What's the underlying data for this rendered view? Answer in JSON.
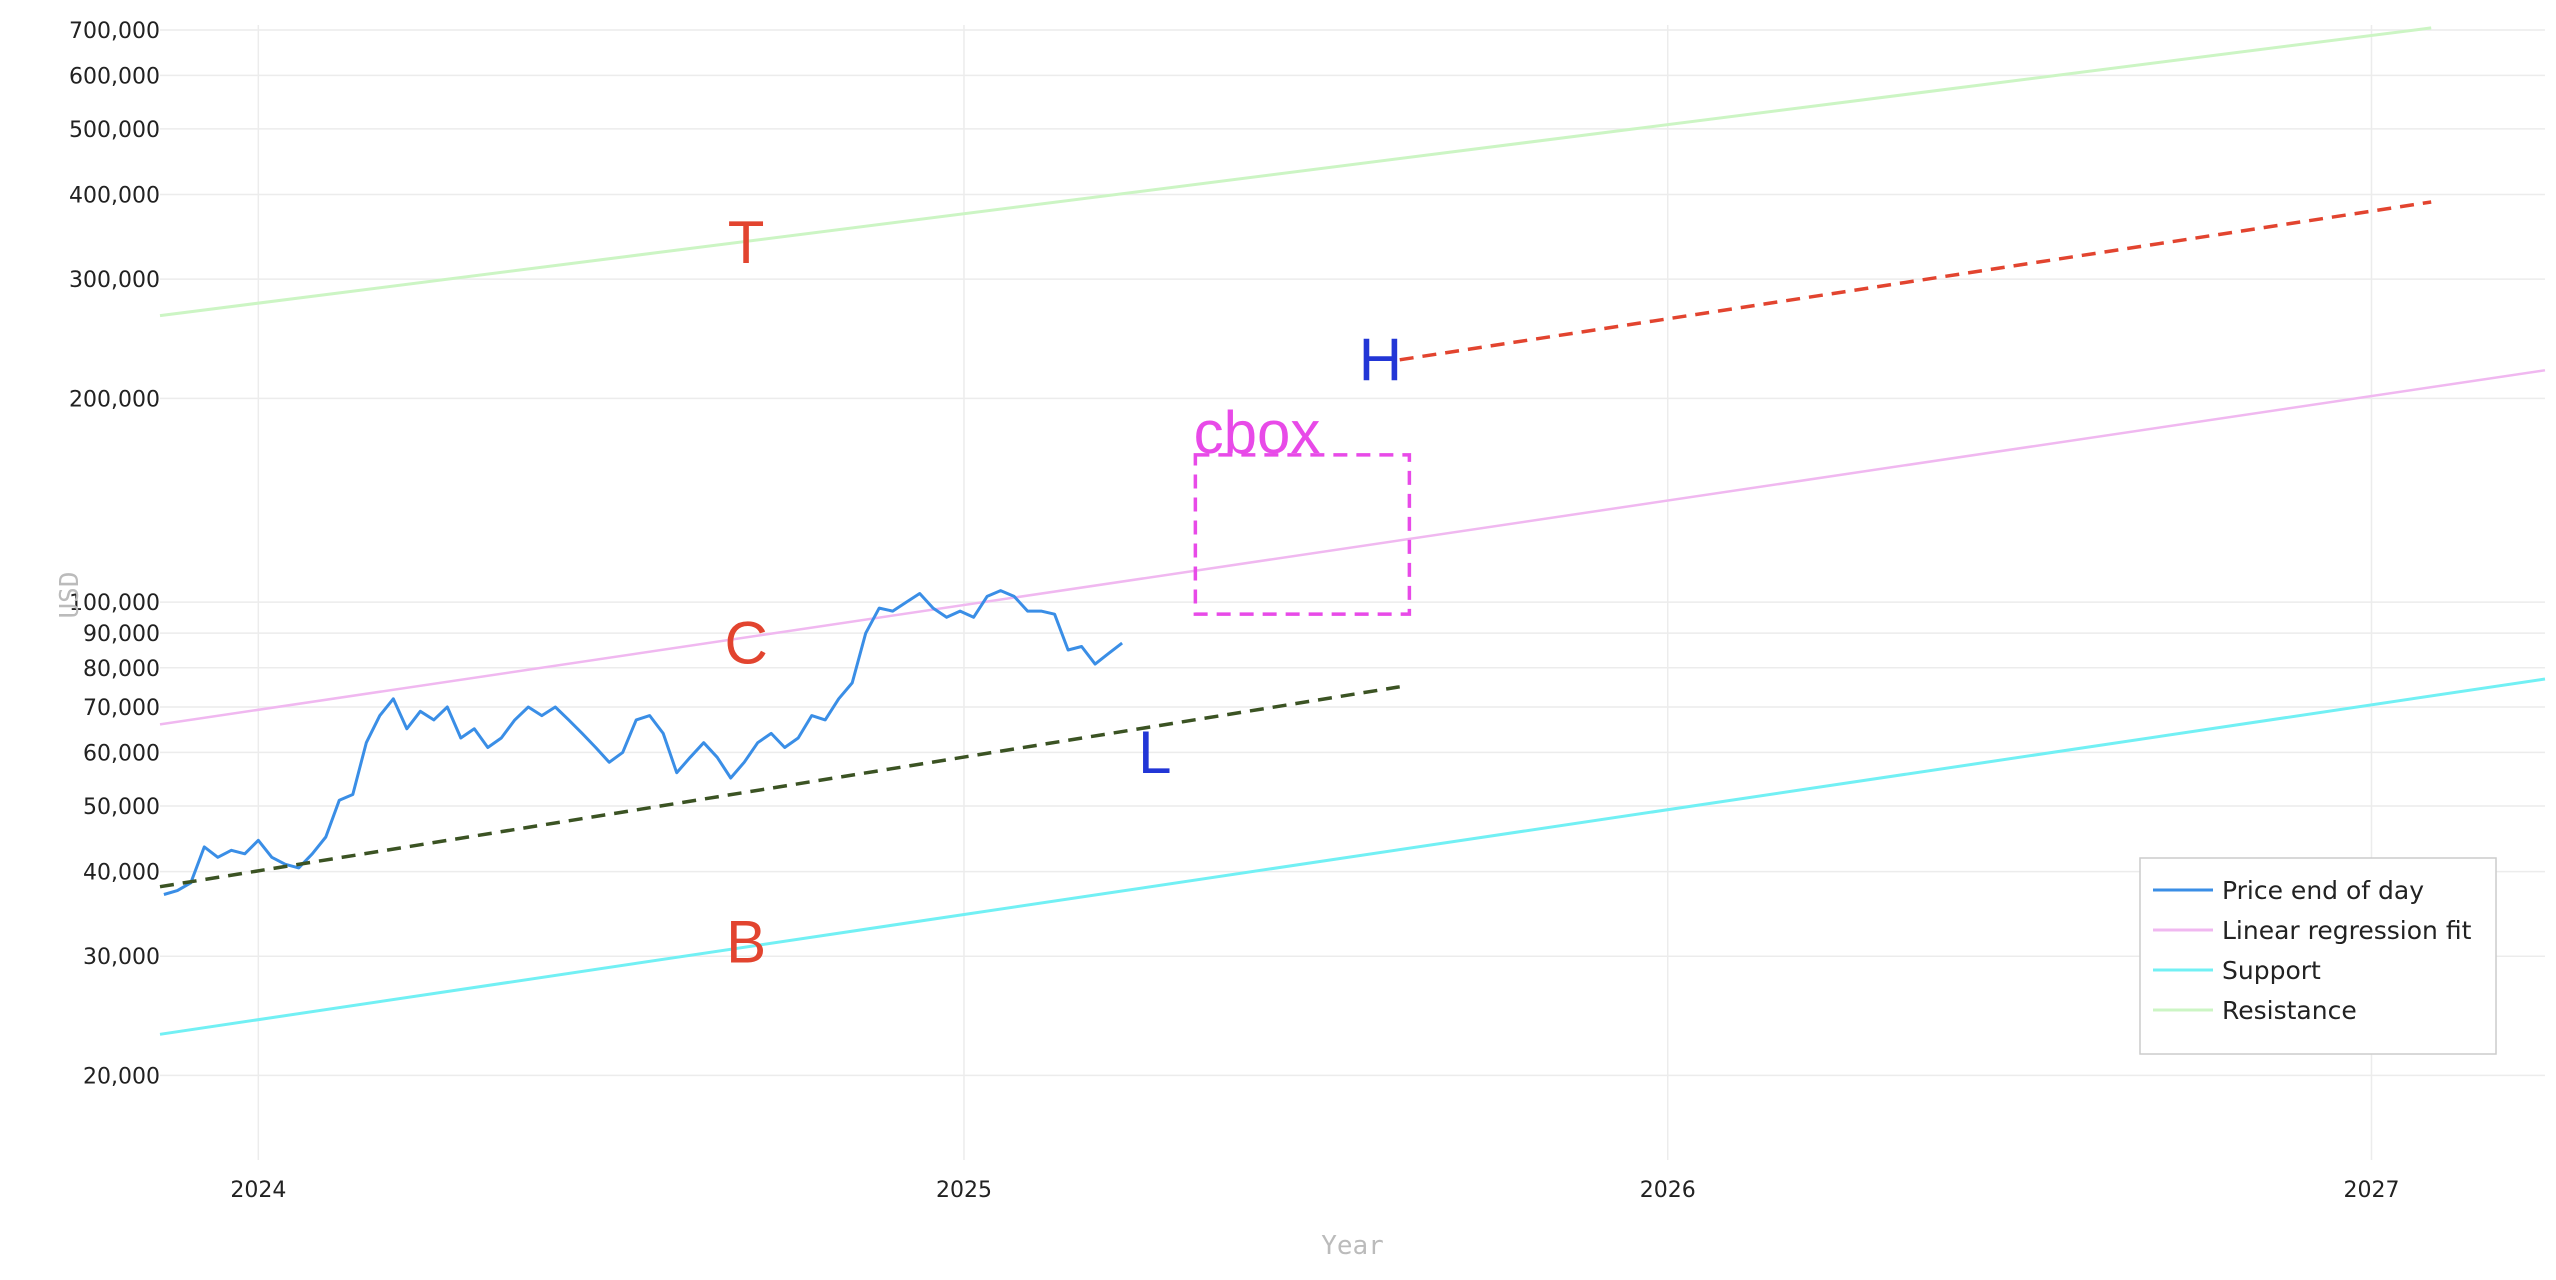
{
  "chart_data": {
    "type": "line",
    "title": "",
    "xlabel": "Year",
    "ylabel": "USD",
    "y_scale": "log",
    "ylim": [
      15000,
      700000
    ],
    "xlim": [
      "2023-11-11",
      "2027-04-01"
    ],
    "grid": true,
    "x_ticks": [
      {
        "value": "2024-01-01",
        "label": "2024"
      },
      {
        "value": "2025-01-01",
        "label": "2025"
      },
      {
        "value": "2026-01-01",
        "label": "2026"
      },
      {
        "value": "2027-01-01",
        "label": "2027"
      }
    ],
    "y_ticks": [
      {
        "value": 20000,
        "label": "20,000"
      },
      {
        "value": 30000,
        "label": "30,000"
      },
      {
        "value": 40000,
        "label": "40,000"
      },
      {
        "value": 50000,
        "label": "50,000"
      },
      {
        "value": 60000,
        "label": "60,000"
      },
      {
        "value": 70000,
        "label": "70,000"
      },
      {
        "value": 80000,
        "label": "80,000"
      },
      {
        "value": 90000,
        "label": "90,000"
      },
      {
        "value": 100000,
        "label": "100,000"
      },
      {
        "value": 200000,
        "label": "200,000"
      },
      {
        "value": 300000,
        "label": "300,000"
      },
      {
        "value": 400000,
        "label": "400,000"
      },
      {
        "value": 500000,
        "label": "500,000"
      },
      {
        "value": 600000,
        "label": "600,000"
      },
      {
        "value": 700000,
        "label": "700,000"
      }
    ],
    "legend": {
      "position": "bottom-right",
      "entries": [
        {
          "label": "Price end of day",
          "color": "#3a8ee6"
        },
        {
          "label": "Linear regression fit",
          "color": "#f0b8f0"
        },
        {
          "label": "Support",
          "color": "#72f0f4"
        },
        {
          "label": "Resistance",
          "color": "#ccf5c4"
        }
      ]
    },
    "series": [
      {
        "name": "Price end of day",
        "kind": "price",
        "color": "#3a8ee6",
        "x": [
          "2023-11-13",
          "2023-11-20",
          "2023-11-27",
          "2023-12-04",
          "2023-12-11",
          "2023-12-18",
          "2023-12-25",
          "2024-01-01",
          "2024-01-08",
          "2024-01-15",
          "2024-01-22",
          "2024-01-29",
          "2024-02-05",
          "2024-02-12",
          "2024-02-19",
          "2024-02-26",
          "2024-03-04",
          "2024-03-11",
          "2024-03-18",
          "2024-03-25",
          "2024-04-01",
          "2024-04-08",
          "2024-04-15",
          "2024-04-22",
          "2024-04-29",
          "2024-05-06",
          "2024-05-13",
          "2024-05-20",
          "2024-05-27",
          "2024-06-03",
          "2024-06-10",
          "2024-06-17",
          "2024-06-24",
          "2024-07-01",
          "2024-07-08",
          "2024-07-15",
          "2024-07-22",
          "2024-07-29",
          "2024-08-05",
          "2024-08-12",
          "2024-08-19",
          "2024-08-26",
          "2024-09-02",
          "2024-09-09",
          "2024-09-16",
          "2024-09-23",
          "2024-09-30",
          "2024-10-07",
          "2024-10-14",
          "2024-10-21",
          "2024-10-28",
          "2024-11-04",
          "2024-11-11",
          "2024-11-18",
          "2024-11-25",
          "2024-12-02",
          "2024-12-09",
          "2024-12-16",
          "2024-12-23",
          "2024-12-30",
          "2025-01-06",
          "2025-01-13",
          "2025-01-20",
          "2025-01-27",
          "2025-02-03",
          "2025-02-10",
          "2025-02-17",
          "2025-02-24",
          "2025-03-03",
          "2025-03-10",
          "2025-03-17",
          "2025-03-24"
        ],
        "values": [
          37000,
          37500,
          38500,
          43500,
          42000,
          43000,
          42500,
          44500,
          42000,
          41000,
          40500,
          42500,
          45000,
          51000,
          52000,
          62000,
          68000,
          72000,
          65000,
          69000,
          67000,
          70000,
          63000,
          65000,
          61000,
          63000,
          67000,
          70000,
          68000,
          70000,
          67000,
          64000,
          61000,
          58000,
          60000,
          67000,
          68000,
          64000,
          56000,
          59000,
          62000,
          59000,
          55000,
          58000,
          62000,
          64000,
          61000,
          63000,
          68000,
          67000,
          72000,
          76000,
          90000,
          98000,
          97000,
          100000,
          103000,
          98000,
          95000,
          97000,
          95000,
          102000,
          104000,
          102000,
          97000,
          97000,
          96000,
          85000,
          86000,
          81000,
          84000,
          87000
        ]
      },
      {
        "name": "Linear regression fit",
        "kind": "fit",
        "color": "#f0b8f0",
        "x": [
          "2023-11-11",
          "2027-04-01"
        ],
        "values": [
          66000,
          220000
        ]
      },
      {
        "name": "Support",
        "kind": "support",
        "color": "#72f0f4",
        "x": [
          "2023-11-11",
          "2027-04-01"
        ],
        "values": [
          23000,
          77000
        ]
      },
      {
        "name": "Resistance",
        "kind": "resistance",
        "color": "#ccf5c4",
        "x": [
          "2023-11-11",
          "2027-02-01"
        ],
        "values": [
          265000,
          705000
        ]
      }
    ],
    "annotation_lines": [
      {
        "kind": "lower-dashed",
        "color": "#3b5323",
        "x": [
          "2023-11-11",
          "2025-08-15"
        ],
        "values": [
          38000,
          75000
        ]
      },
      {
        "kind": "upper-dashed",
        "color": "#e2442f",
        "x": [
          "2025-08-15",
          "2027-02-01"
        ],
        "values": [
          228000,
          390000
        ]
      }
    ],
    "box": {
      "color": "#e84ae8",
      "x": [
        "2025-05-01",
        "2025-08-20"
      ],
      "y": [
        96000,
        165000
      ]
    },
    "annotations": [
      {
        "text": "T",
        "color": "#e2442f",
        "x": "2024-09-10",
        "y": 340000
      },
      {
        "text": "C",
        "color": "#e2442f",
        "x": "2024-09-10",
        "y": 87000
      },
      {
        "text": "B",
        "color": "#e2442f",
        "x": "2024-09-10",
        "y": 31500
      },
      {
        "text": "cbox",
        "color": "#e84ae8",
        "x": "2025-06-02",
        "y": 178000
      },
      {
        "text": "H",
        "color": "#2236d6",
        "x": "2025-08-05",
        "y": 228000
      },
      {
        "text": "L",
        "color": "#2236d6",
        "x": "2025-04-10",
        "y": 60000
      }
    ]
  }
}
